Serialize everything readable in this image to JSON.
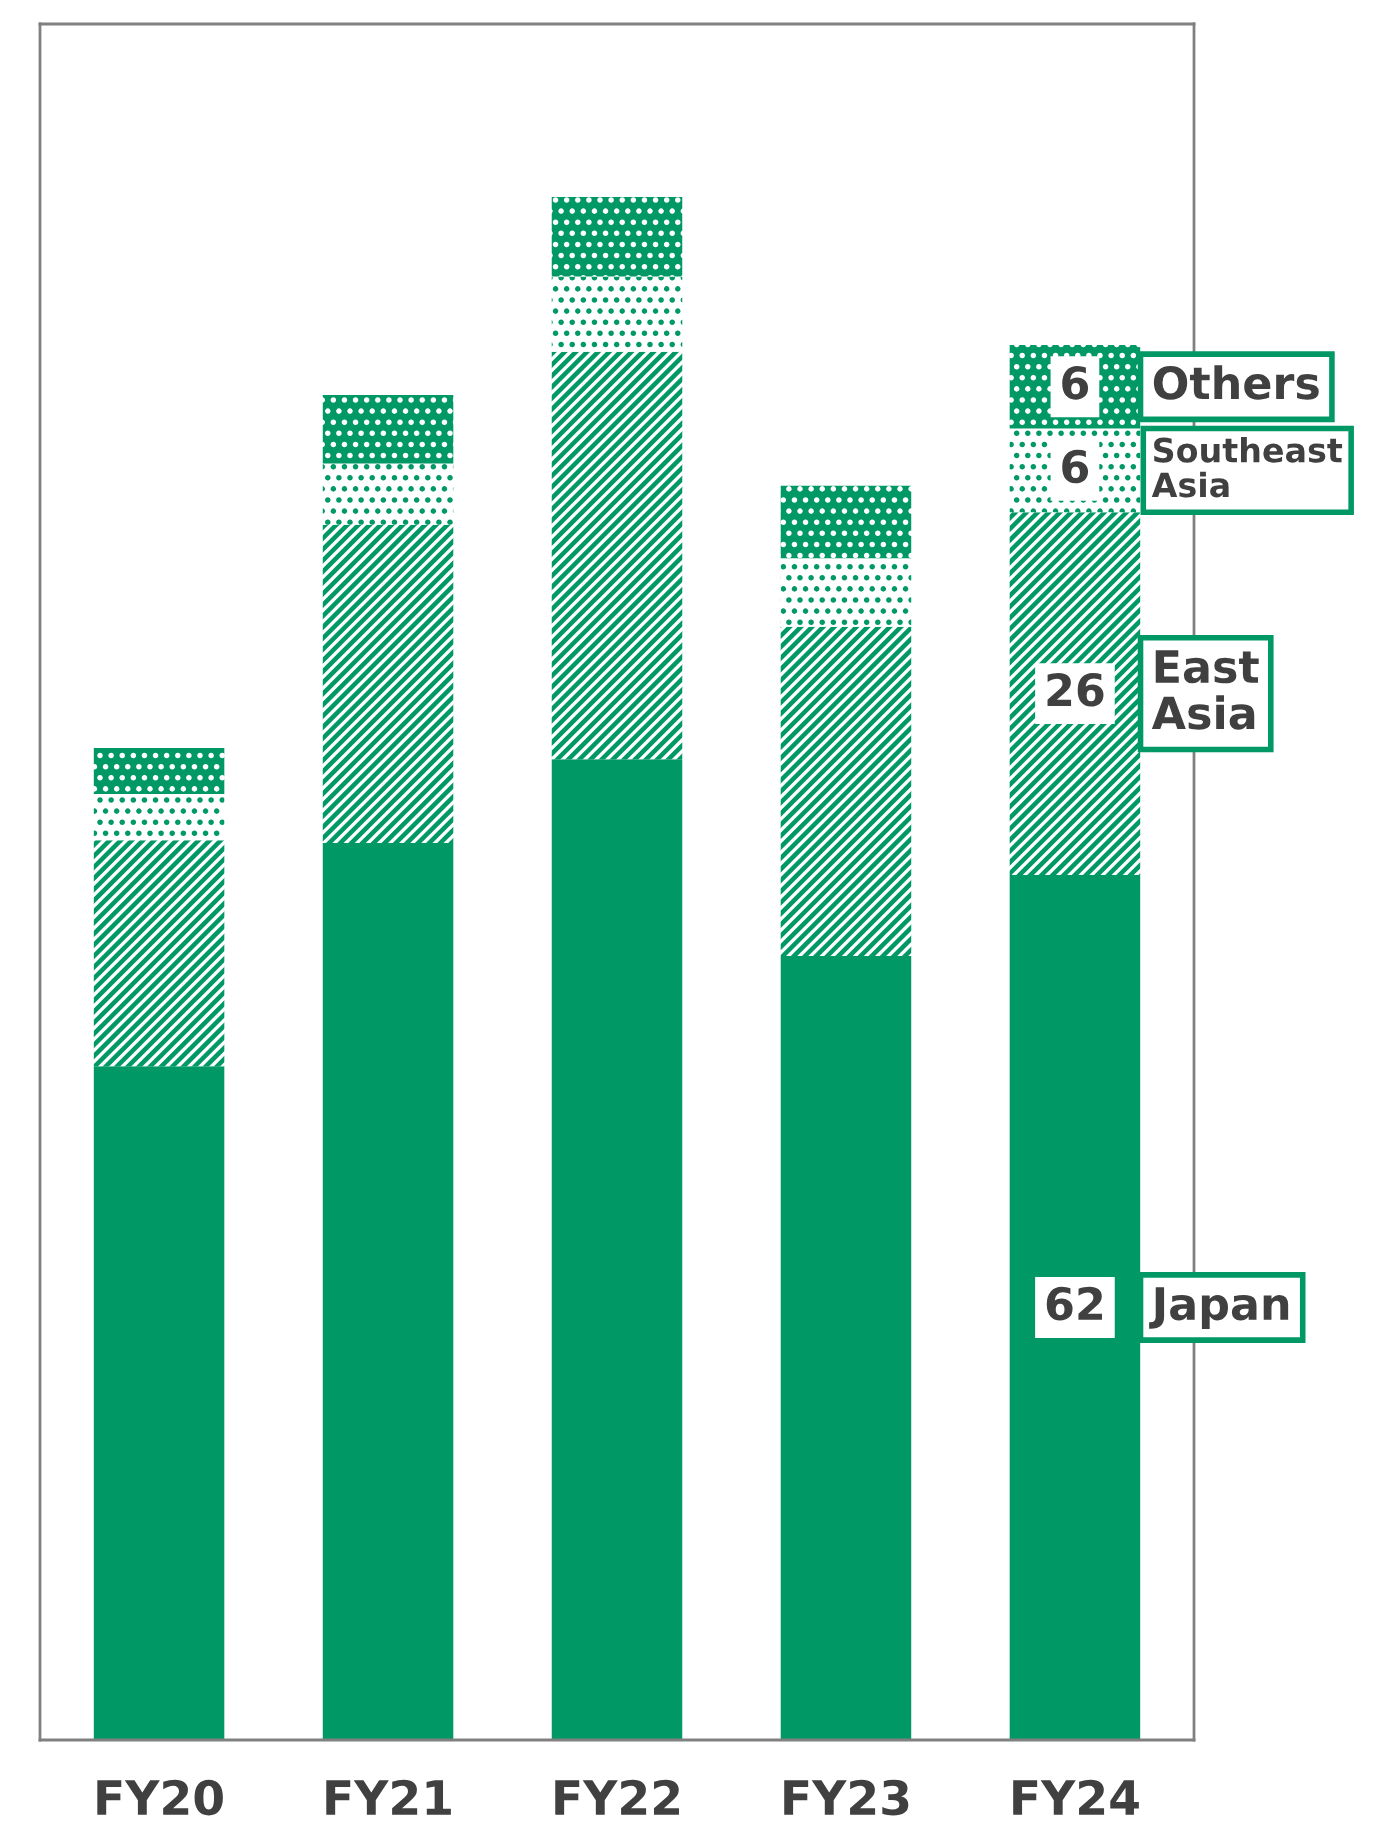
{
  "chart_data": {
    "type": "bar",
    "stacked": true,
    "legend": false,
    "grid": false,
    "categories": [
      "FY20",
      "FY21",
      "FY22",
      "FY23",
      "FY24"
    ],
    "ylim": [
      0,
      123
    ],
    "series": [
      {
        "name": "Japan",
        "color": "#009966",
        "values": [
          48.3,
          64.3,
          70.3,
          56.2,
          62
        ],
        "value_labels": [
          null,
          null,
          null,
          null,
          "62"
        ]
      },
      {
        "name": "East\nAsia",
        "color": "#009966",
        "values": [
          16.2,
          22.8,
          29.2,
          23.6,
          26
        ],
        "value_labels": [
          null,
          null,
          null,
          null,
          "26"
        ]
      },
      {
        "name": "Southeast\nAsia",
        "color": "#ffffff",
        "values": [
          3.3,
          4.4,
          5.4,
          4.9,
          6
        ],
        "value_labels": [
          null,
          null,
          null,
          null,
          "6"
        ]
      },
      {
        "name": "Others",
        "color": "#009966",
        "values": [
          3.3,
          4.9,
          5.7,
          5.2,
          6
        ],
        "value_labels": [
          null,
          null,
          null,
          null,
          "6"
        ]
      }
    ]
  }
}
